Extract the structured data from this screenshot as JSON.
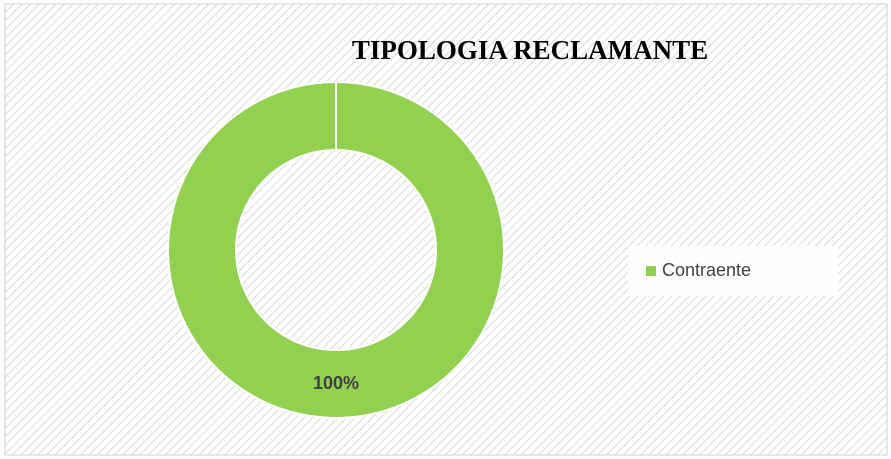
{
  "chart_data": {
    "type": "pie",
    "title": "TIPOLOGIA RECLAMANTE",
    "categories": [
      "Contraente"
    ],
    "values": [
      100
    ],
    "value_labels": [
      "100%"
    ],
    "colors": [
      "#92d050"
    ],
    "donut": true,
    "legend": "right"
  }
}
